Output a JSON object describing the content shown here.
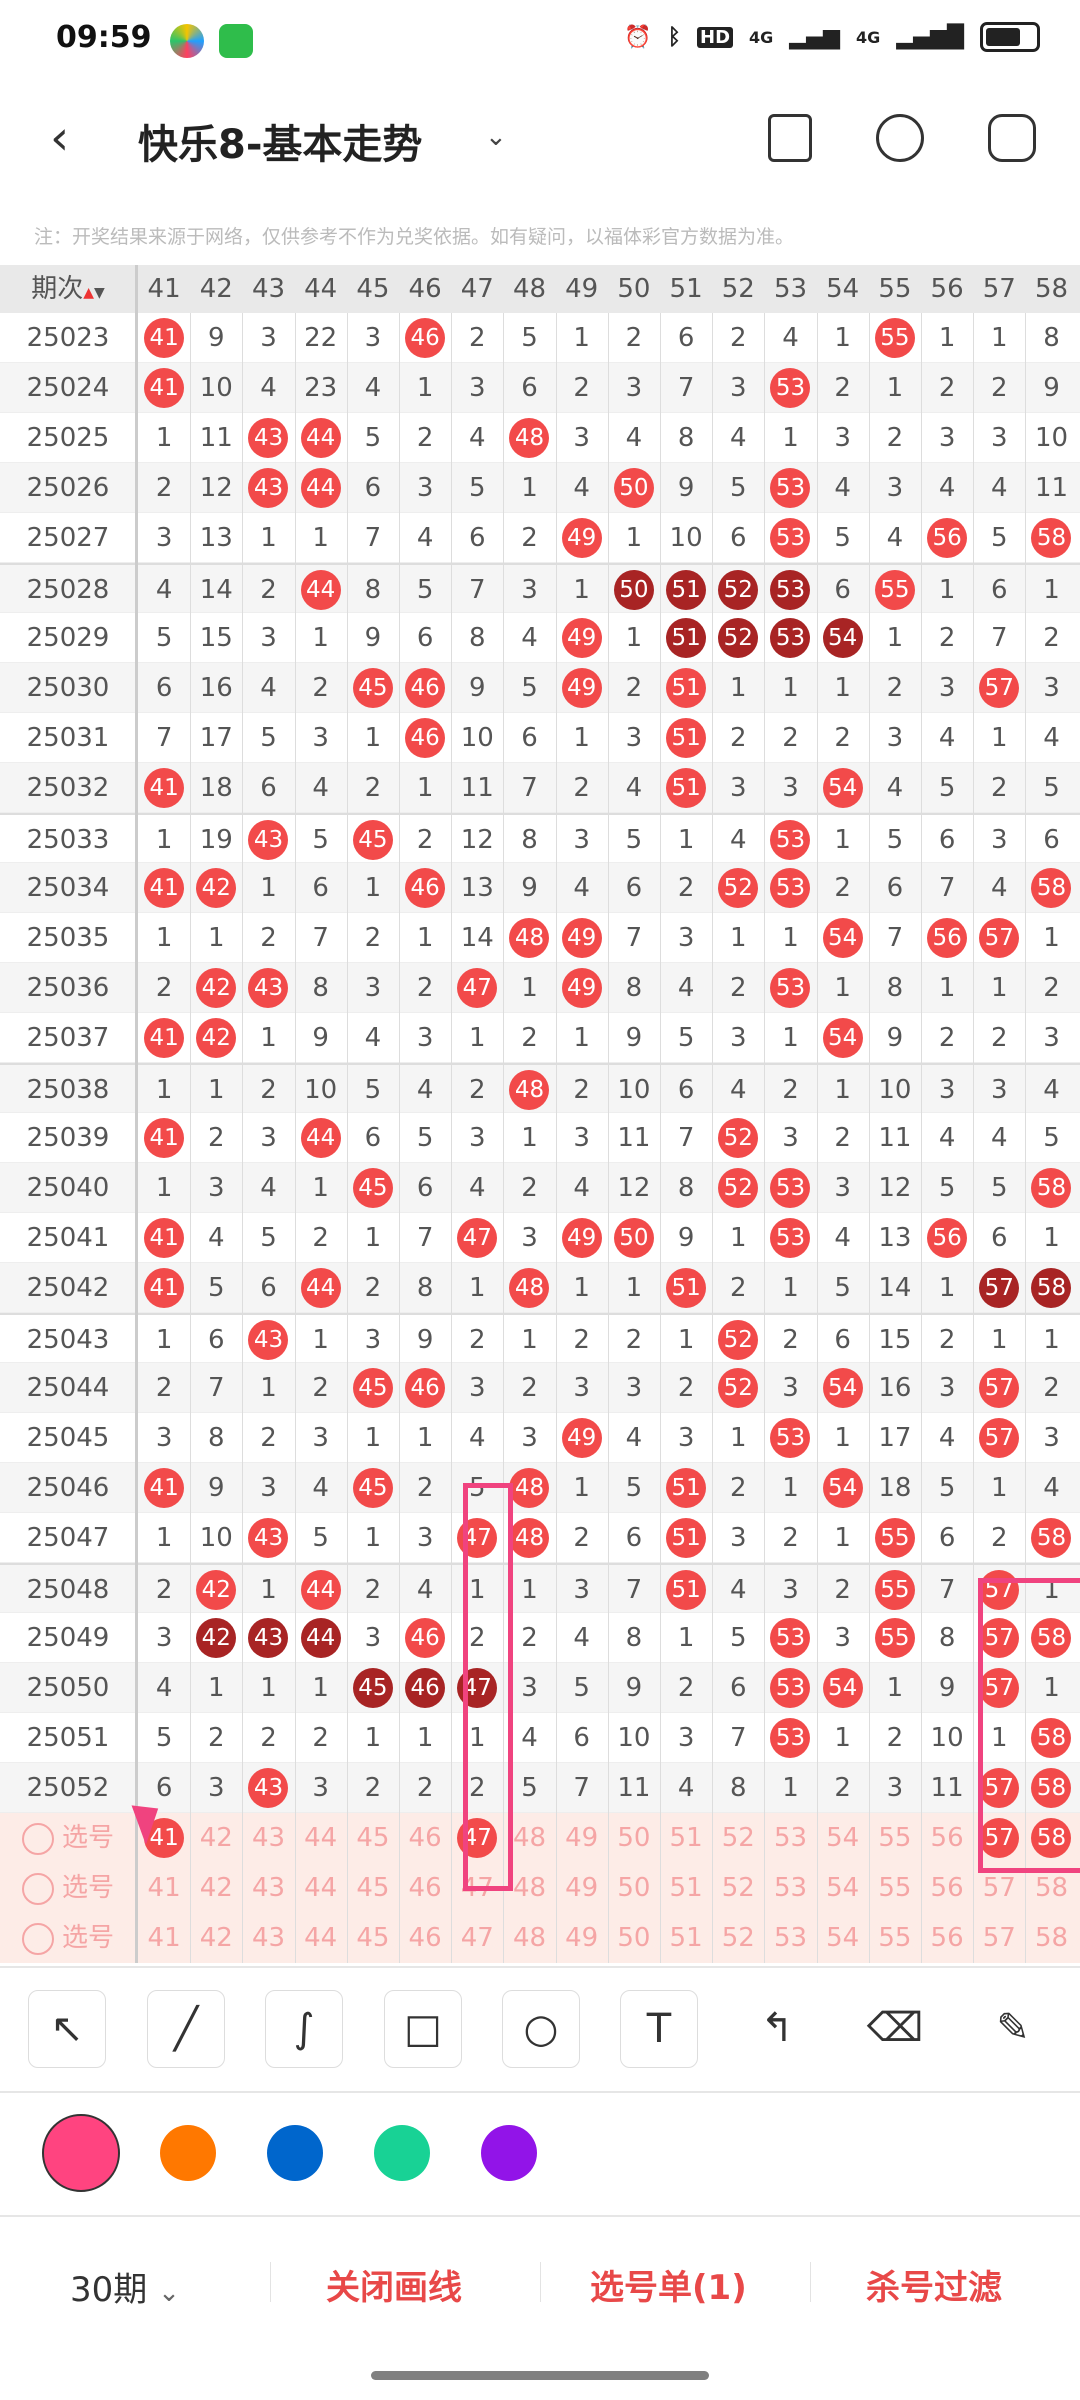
{
  "status_bar": {
    "time": "09:59",
    "icons": [
      "app-icon",
      "wechat-icon",
      "alarm-icon",
      "bluetooth-icon",
      "hd-icon",
      "4g-signal-icon",
      "4g-signal-icon",
      "battery-icon"
    ],
    "hd": "HD",
    "net1": "4G",
    "net2": "4G"
  },
  "header": {
    "back": "‹",
    "title": "快乐8-基本走势",
    "dropdown": "⌄",
    "icons": [
      "layout-icon",
      "share-icon",
      "settings-icon"
    ]
  },
  "note": "注：开奖结果来源于网络，仅供参考不作为兑奖依据。如有疑问，以福体彩官方数据为准。",
  "table": {
    "period_header": "期次",
    "columns": [
      "41",
      "42",
      "43",
      "44",
      "45",
      "46",
      "47",
      "48",
      "49",
      "50",
      "51",
      "52",
      "53",
      "54",
      "55",
      "56",
      "57",
      "58"
    ],
    "colors": {
      "hit": "#f24a4a",
      "consecutive": "#a82424"
    },
    "rows": [
      {
        "period": "25023",
        "values": [
          41,
          9,
          3,
          22,
          3,
          46,
          2,
          5,
          1,
          2,
          6,
          2,
          4,
          1,
          55,
          1,
          1,
          8
        ],
        "dark": []
      },
      {
        "period": "25024",
        "values": [
          41,
          10,
          4,
          23,
          4,
          1,
          3,
          6,
          2,
          3,
          7,
          3,
          53,
          2,
          1,
          2,
          2,
          9
        ],
        "dark": []
      },
      {
        "period": "25025",
        "values": [
          1,
          11,
          43,
          44,
          5,
          2,
          4,
          48,
          3,
          4,
          8,
          4,
          1,
          3,
          2,
          3,
          3,
          10
        ],
        "dark": []
      },
      {
        "period": "25026",
        "values": [
          2,
          12,
          43,
          44,
          6,
          3,
          5,
          1,
          4,
          50,
          9,
          5,
          53,
          4,
          3,
          4,
          4,
          11
        ],
        "dark": []
      },
      {
        "period": "25027",
        "values": [
          3,
          13,
          1,
          1,
          7,
          4,
          6,
          2,
          49,
          1,
          10,
          6,
          53,
          5,
          4,
          56,
          5,
          58
        ],
        "dark": []
      },
      {
        "period": "25028",
        "values": [
          4,
          14,
          2,
          44,
          8,
          5,
          7,
          3,
          1,
          50,
          51,
          52,
          53,
          6,
          55,
          1,
          6,
          1
        ],
        "dark": [
          50,
          51,
          52,
          53
        ]
      },
      {
        "period": "25029",
        "values": [
          5,
          15,
          3,
          1,
          9,
          6,
          8,
          4,
          49,
          1,
          51,
          52,
          53,
          54,
          1,
          2,
          7,
          2
        ],
        "dark": [
          51,
          52,
          53,
          54
        ]
      },
      {
        "period": "25030",
        "values": [
          6,
          16,
          4,
          2,
          45,
          46,
          9,
          5,
          49,
          2,
          51,
          1,
          1,
          1,
          2,
          3,
          57,
          3
        ],
        "dark": []
      },
      {
        "period": "25031",
        "values": [
          7,
          17,
          5,
          3,
          1,
          46,
          10,
          6,
          1,
          3,
          51,
          2,
          2,
          2,
          3,
          4,
          1,
          4
        ],
        "dark": []
      },
      {
        "period": "25032",
        "values": [
          41,
          18,
          6,
          4,
          2,
          1,
          11,
          7,
          2,
          4,
          51,
          3,
          3,
          54,
          4,
          5,
          2,
          5
        ],
        "dark": []
      },
      {
        "period": "25033",
        "values": [
          1,
          19,
          43,
          5,
          45,
          2,
          12,
          8,
          3,
          5,
          1,
          4,
          53,
          1,
          5,
          6,
          3,
          6
        ],
        "dark": []
      },
      {
        "period": "25034",
        "values": [
          41,
          42,
          1,
          6,
          1,
          46,
          13,
          9,
          4,
          6,
          2,
          52,
          53,
          2,
          6,
          7,
          4,
          58
        ],
        "dark": []
      },
      {
        "period": "25035",
        "values": [
          1,
          1,
          2,
          7,
          2,
          1,
          14,
          48,
          49,
          7,
          3,
          1,
          1,
          54,
          7,
          56,
          57,
          1
        ],
        "dark": []
      },
      {
        "period": "25036",
        "values": [
          2,
          42,
          43,
          8,
          3,
          2,
          47,
          1,
          49,
          8,
          4,
          2,
          53,
          1,
          8,
          1,
          1,
          2
        ],
        "dark": []
      },
      {
        "period": "25037",
        "values": [
          41,
          42,
          1,
          9,
          4,
          3,
          1,
          2,
          1,
          9,
          5,
          3,
          1,
          54,
          9,
          2,
          2,
          3
        ],
        "dark": []
      },
      {
        "period": "25038",
        "values": [
          1,
          1,
          2,
          10,
          5,
          4,
          2,
          48,
          2,
          10,
          6,
          4,
          2,
          1,
          10,
          3,
          3,
          4
        ],
        "dark": []
      },
      {
        "period": "25039",
        "values": [
          41,
          2,
          3,
          44,
          6,
          5,
          3,
          1,
          3,
          11,
          7,
          52,
          3,
          2,
          11,
          4,
          4,
          5
        ],
        "dark": []
      },
      {
        "period": "25040",
        "values": [
          1,
          3,
          4,
          1,
          45,
          6,
          4,
          2,
          4,
          12,
          8,
          52,
          53,
          3,
          12,
          5,
          5,
          58
        ],
        "dark": []
      },
      {
        "period": "25041",
        "values": [
          41,
          4,
          5,
          2,
          1,
          7,
          47,
          3,
          49,
          50,
          9,
          1,
          53,
          4,
          13,
          56,
          6,
          1
        ],
        "dark": []
      },
      {
        "period": "25042",
        "values": [
          41,
          5,
          6,
          44,
          2,
          8,
          1,
          48,
          1,
          1,
          51,
          2,
          1,
          5,
          14,
          1,
          57,
          58
        ],
        "dark": [
          57,
          58
        ]
      },
      {
        "period": "25043",
        "values": [
          1,
          6,
          43,
          1,
          3,
          9,
          2,
          1,
          2,
          2,
          1,
          52,
          2,
          6,
          15,
          2,
          1,
          1
        ],
        "dark": []
      },
      {
        "period": "25044",
        "values": [
          2,
          7,
          1,
          2,
          45,
          46,
          3,
          2,
          3,
          3,
          2,
          52,
          3,
          54,
          16,
          3,
          57,
          2
        ],
        "dark": []
      },
      {
        "period": "25045",
        "values": [
          3,
          8,
          2,
          3,
          1,
          1,
          4,
          3,
          49,
          4,
          3,
          1,
          53,
          1,
          17,
          4,
          57,
          3
        ],
        "dark": []
      },
      {
        "period": "25046",
        "values": [
          41,
          9,
          3,
          4,
          45,
          2,
          5,
          48,
          1,
          5,
          51,
          2,
          1,
          54,
          18,
          5,
          1,
          4
        ],
        "dark": []
      },
      {
        "period": "25047",
        "values": [
          1,
          10,
          43,
          5,
          1,
          3,
          47,
          48,
          2,
          6,
          51,
          3,
          2,
          1,
          55,
          6,
          2,
          58
        ],
        "dark": []
      },
      {
        "period": "25048",
        "values": [
          2,
          42,
          1,
          44,
          2,
          4,
          1,
          1,
          3,
          7,
          51,
          4,
          3,
          2,
          55,
          7,
          57,
          1
        ],
        "dark": []
      },
      {
        "period": "25049",
        "values": [
          3,
          42,
          43,
          44,
          3,
          46,
          2,
          2,
          4,
          8,
          1,
          5,
          53,
          3,
          55,
          8,
          57,
          58
        ],
        "dark": [
          42,
          43,
          44
        ]
      },
      {
        "period": "25050",
        "values": [
          4,
          1,
          1,
          1,
          45,
          46,
          47,
          3,
          5,
          9,
          2,
          6,
          53,
          54,
          1,
          9,
          57,
          1
        ],
        "dark": [
          45,
          46,
          47
        ]
      },
      {
        "period": "25051",
        "values": [
          5,
          2,
          2,
          2,
          1,
          1,
          1,
          4,
          6,
          10,
          3,
          7,
          53,
          1,
          2,
          10,
          1,
          58
        ],
        "dark": []
      },
      {
        "period": "25052",
        "values": [
          6,
          3,
          43,
          3,
          2,
          2,
          2,
          5,
          7,
          11,
          4,
          8,
          1,
          2,
          3,
          11,
          57,
          58
        ],
        "dark": []
      }
    ],
    "select_label": "选号",
    "select_rows": [
      {
        "selected": [
          41,
          47,
          57,
          58
        ]
      },
      {
        "selected": []
      },
      {
        "selected": []
      }
    ]
  },
  "annotation_color": "#f0437f",
  "tools": [
    {
      "icon": "arrow-tool-icon",
      "glyph": "↖"
    },
    {
      "icon": "line-tool-icon",
      "glyph": "╱"
    },
    {
      "icon": "curve-tool-icon",
      "glyph": "∫"
    },
    {
      "icon": "rectangle-tool-icon",
      "glyph": "□"
    },
    {
      "icon": "circle-tool-icon",
      "glyph": "○"
    },
    {
      "icon": "text-tool-icon",
      "glyph": "T"
    },
    {
      "icon": "undo-icon",
      "glyph": "↰"
    },
    {
      "icon": "eraser-icon",
      "glyph": "⌫"
    },
    {
      "icon": "clear-icon",
      "glyph": "✎"
    }
  ],
  "colors": [
    "#ff4480",
    "#ff7800",
    "#0066cc",
    "#18d295",
    "#9214e8"
  ],
  "selected_color": "#ff4480",
  "bottom": {
    "periods": "30期",
    "chevron": "⌄",
    "close_draw": "关闭画线",
    "pick_list": "选号单(1)",
    "filter": "杀号过滤"
  }
}
